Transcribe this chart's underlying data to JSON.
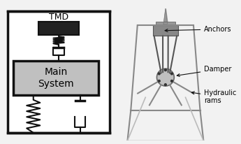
{
  "bg_color": "#f2f2f2",
  "tmd_label": "TMD",
  "main_system_label": "Main\nSystem",
  "anchors_label": "Anchors",
  "damper_label": "Damper",
  "hydraulic_label": "Hydraulic\nrams",
  "dark_box": "#222222",
  "medium_gray": "#888888",
  "light_gray": "#bbbbbb",
  "main_box_bg": "#c0c0c0",
  "outline_color": "#111111",
  "frame_bg": "#f0f0f0",
  "anchor_color": "#777777",
  "spike_color": "#999999"
}
